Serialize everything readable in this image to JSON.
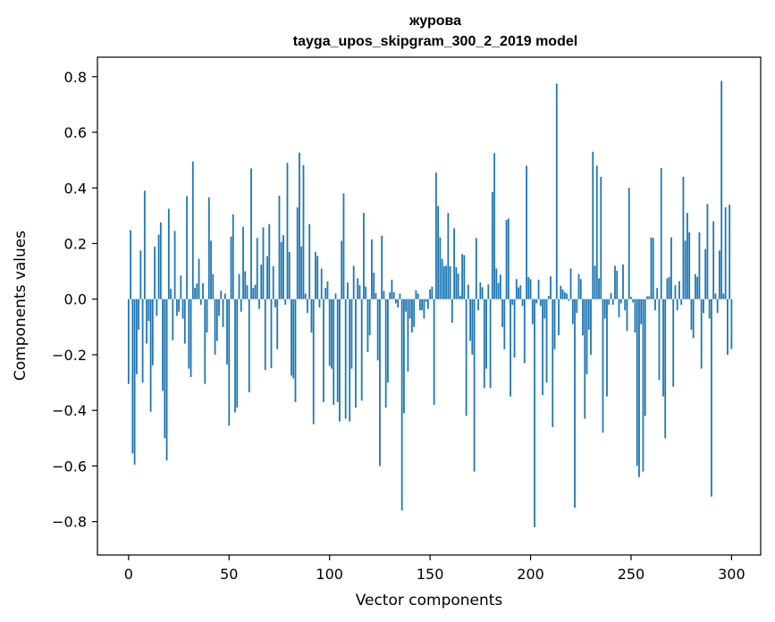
{
  "chart_data": {
    "type": "bar",
    "title": "журова",
    "subtitle": "tayga_upos_skipgram_300_2_2019 model",
    "xlabel": "Vector components",
    "ylabel": "Components values",
    "xlim": [
      -15.5,
      314.5
    ],
    "ylim": [
      -0.92,
      0.87
    ],
    "x_ticks": [
      0,
      50,
      100,
      150,
      200,
      250,
      300
    ],
    "x_tick_labels": [
      "0",
      "50",
      "100",
      "150",
      "200",
      "250",
      "300"
    ],
    "y_ticks": [
      -0.8,
      -0.6,
      -0.4,
      -0.2,
      0.0,
      0.2,
      0.4,
      0.6,
      0.8
    ],
    "y_tick_labels": [
      "−0.8",
      "−0.6",
      "−0.4",
      "−0.2",
      "0.0",
      "0.2",
      "0.4",
      "0.6",
      "0.8"
    ],
    "bar_color": "#1f77b4",
    "values": [
      -0.305,
      0.248,
      -0.555,
      -0.595,
      -0.27,
      -0.11,
      0.175,
      -0.3,
      0.39,
      -0.16,
      -0.078,
      -0.405,
      -0.238,
      0.188,
      -0.06,
      0.232,
      0.276,
      -0.33,
      -0.5,
      -0.58,
      0.325,
      0.037,
      -0.148,
      0.245,
      -0.06,
      -0.045,
      0.085,
      -0.07,
      -0.16,
      0.37,
      -0.25,
      -0.28,
      0.495,
      0.04,
      0.056,
      0.145,
      -0.02,
      0.057,
      -0.305,
      -0.12,
      0.366,
      0.21,
      0.09,
      -0.2,
      -0.15,
      -0.06,
      0.03,
      -0.1,
      0.02,
      -0.235,
      -0.455,
      0.225,
      0.305,
      -0.407,
      -0.39,
      0.09,
      -0.045,
      0.26,
      0.1,
      0.05,
      -0.335,
      0.47,
      0.04,
      0.052,
      0.22,
      -0.035,
      0.124,
      0.258,
      -0.255,
      0.155,
      0.27,
      -0.248,
      0.118,
      -0.03,
      -0.18,
      0.372,
      0.205,
      0.23,
      -0.02,
      0.49,
      0.17,
      -0.275,
      -0.285,
      -0.37,
      0.33,
      0.527,
      0.19,
      0.482,
      0.02,
      -0.05,
      0.27,
      -0.12,
      -0.45,
      0.17,
      0.155,
      -0.03,
      0.11,
      -0.37,
      0.04,
      0.064,
      -0.24,
      -0.25,
      -0.38,
      0.02,
      -0.37,
      -0.44,
      0.21,
      0.38,
      -0.43,
      0.06,
      -0.44,
      -0.25,
      0.12,
      -0.39,
      0.075,
      0.05,
      -0.365,
      0.31,
      0.045,
      -0.19,
      -0.13,
      0.215,
      0.095,
      0.022,
      -0.22,
      -0.6,
      0.228,
      0.03,
      -0.39,
      -0.3,
      0.024,
      0.07,
      0.025,
      -0.015,
      -0.03,
      0.02,
      -0.76,
      -0.41,
      -0.045,
      -0.26,
      -0.07,
      -0.12,
      -0.1,
      0.032,
      0.02,
      -0.04,
      -0.04,
      -0.07,
      -0.01,
      -0.035,
      0.035,
      0.045,
      -0.38,
      0.455,
      0.335,
      0.222,
      0.145,
      0.118,
      0.12,
      0.31,
      0.118,
      -0.085,
      0.255,
      0.115,
      0.092,
      0.012,
      0.162,
      0.158,
      -0.42,
      0.052,
      -0.15,
      -0.2,
      -0.62,
      0.22,
      -0.04,
      0.06,
      0.043,
      -0.32,
      -0.25,
      0.053,
      -0.32,
      0.385,
      0.525,
      0.11,
      0.058,
      0.088,
      -0.1,
      -0.18,
      0.285,
      0.29,
      -0.35,
      -0.02,
      -0.21,
      0.072,
      0.042,
      0.05,
      -0.025,
      -0.23,
      0.48,
      0.08,
      0.072,
      -0.09,
      -0.82,
      -0.015,
      0.07,
      -0.025,
      -0.345,
      -0.07,
      -0.3,
      0.012,
      0.082,
      -0.46,
      -0.18,
      0.775,
      -0.13,
      0.048,
      0.035,
      0.025,
      0.02,
      -0.006,
      0.11,
      -0.09,
      -0.75,
      -0.05,
      0.09,
      0.072,
      -0.13,
      -0.43,
      -0.27,
      -0.11,
      -0.2,
      0.53,
      0.12,
      0.48,
      0.075,
      0.44,
      -0.48,
      -0.07,
      -0.35,
      -0.02,
      0.022,
      -0.02,
      0.12,
      0.102,
      -0.065,
      -0.015,
      0.125,
      -0.04,
      -0.115,
      0.4,
      0.008,
      -0.012,
      -0.12,
      -0.6,
      -0.64,
      -0.09,
      -0.62,
      -0.42,
      0.01,
      0.01,
      0.222,
      0.22,
      -0.04,
      0.04,
      -0.29,
      0.472,
      -0.35,
      -0.5,
      0.075,
      0.08,
      0.222,
      -0.315,
      0.05,
      -0.04,
      0.065,
      -0.02,
      0.44,
      0.21,
      0.31,
      0.24,
      -0.11,
      -0.14,
      0.09,
      0.08,
      0.24,
      -0.25,
      -0.05,
      0.18,
      0.342,
      -0.07,
      -0.71,
      0.28,
      0.02,
      -0.05,
      0.175,
      0.785,
      0.02,
      0.33,
      -0.2,
      0.34,
      -0.18
    ]
  }
}
